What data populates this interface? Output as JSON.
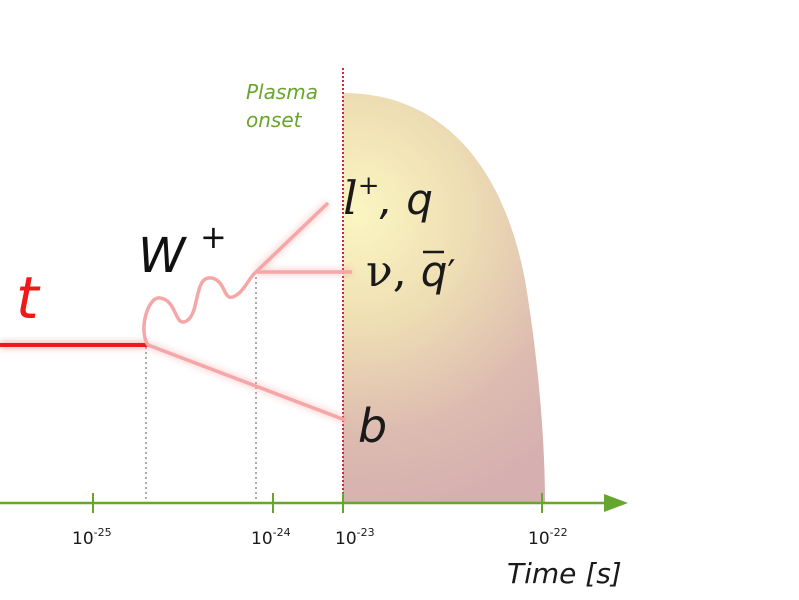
{
  "labels": {
    "plasma_line1": "Plasma",
    "plasma_line2": "onset",
    "top": "t",
    "w_boson_letter": "W",
    "w_boson_charge": "+",
    "lepton_l": "l",
    "lepton_charge": "+",
    "lepton_rest": ", q",
    "neutrino": "ν, ",
    "qbar": "q",
    "qbar_prime": "′",
    "bottom": "b",
    "axis_title": "Time [s]"
  },
  "ticks": [
    {
      "base": "10",
      "exp": "-25"
    },
    {
      "base": "10",
      "exp": "-24"
    },
    {
      "base": "10",
      "exp": "-23"
    },
    {
      "base": "10",
      "exp": "-22"
    }
  ],
  "colors": {
    "axis": "#66a62e",
    "plasma_label": "#6aa52a",
    "top_quark": "#ee1a1a",
    "decay_lines": "#f5a6a6",
    "plasma_top": "#f6efb6",
    "plasma_bottom": "#d9b2b0",
    "onset_line": "#c0303a",
    "text_dark": "#1a1a1a"
  }
}
